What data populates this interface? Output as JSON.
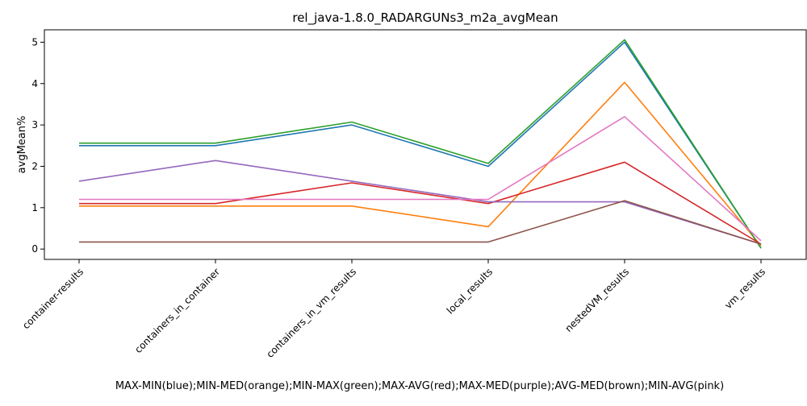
{
  "chart_data": {
    "type": "line",
    "title": "rel_java-1.8.0_RADARGUNs3_m2a_avgMean",
    "xlabel": "MAX-MIN(blue);MIN-MED(orange);MIN-MAX(green);MAX-AVG(red);MAX-MED(purple);AVG-MED(brown);MIN-AVG(pink)",
    "ylabel": "avgMean%",
    "categories": [
      "container-results",
      "containers_in_container",
      "containers_in_vm_results",
      "local_results",
      "nestedVM_results",
      "vm_results"
    ],
    "ylim": [
      -0.25,
      5.3
    ],
    "yticks": [
      0,
      1,
      2,
      3,
      4,
      5
    ],
    "grid": false,
    "series": [
      {
        "color": "#1f77b4",
        "values": [
          2.5,
          2.5,
          3.0,
          2.0,
          5.0,
          0.02
        ]
      },
      {
        "color": "#ff7f0e",
        "values": [
          1.04,
          1.04,
          1.04,
          0.54,
          4.03,
          0.08
        ]
      },
      {
        "color": "#2ca02c",
        "values": [
          2.56,
          2.56,
          3.07,
          2.07,
          5.06,
          0.02
        ]
      },
      {
        "color": "#d62728",
        "values": [
          1.1,
          1.1,
          1.6,
          1.1,
          2.1,
          0.12
        ]
      },
      {
        "color": "#9467bd",
        "values": [
          1.64,
          2.14,
          1.64,
          1.14,
          1.14,
          0.12
        ]
      },
      {
        "color": "#8c564b",
        "values": [
          0.17,
          0.17,
          0.17,
          0.17,
          1.17,
          0.12
        ]
      },
      {
        "color": "#e377c2",
        "values": [
          1.2,
          1.2,
          1.2,
          1.2,
          3.2,
          0.2
        ]
      }
    ]
  }
}
